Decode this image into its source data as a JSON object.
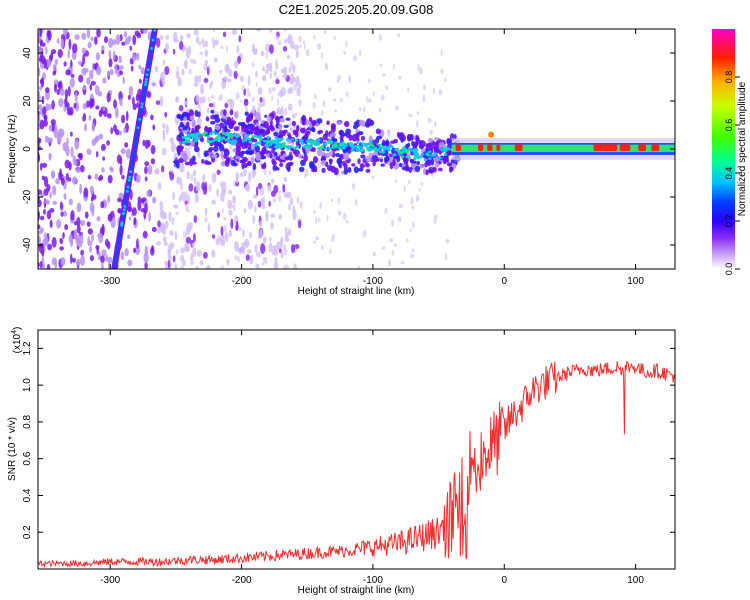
{
  "figure_title": "C2E1.2025.205.20.09.G08",
  "chart_data": [
    {
      "type": "heatmap",
      "title": "C2E1.2025.205.20.09.G08",
      "xlabel": "Height of straight line (km)",
      "ylabel": "Frequency (Hz)",
      "xlim": [
        -355,
        130
      ],
      "ylim": [
        -50,
        50
      ],
      "x_ticks": [
        -300,
        -200,
        -100,
        0,
        100
      ],
      "y_ticks": [
        -40,
        -20,
        0,
        20,
        40
      ],
      "colorbar": {
        "label": "Normalized spectral amplitude",
        "range": [
          0,
          1
        ],
        "ticks": [
          0.0,
          0.2,
          0.4,
          0.6,
          0.8
        ],
        "colors": [
          "#ffffff",
          "#b87cf0",
          "#6a00ff",
          "#0000ff",
          "#00c8ff",
          "#00ff80",
          "#66ff00",
          "#ffff00",
          "#ff8000",
          "#ff0000",
          "#ff00c0"
        ]
      },
      "features": {
        "drifting_line": {
          "x_start": -297,
          "freq_start": -50,
          "x_end": -266,
          "freq_end": 50
        },
        "main_line": {
          "x": [
            -250,
            -220,
            -200,
            -180,
            -160,
            -140,
            -120,
            -100,
            -90,
            -80,
            -70,
            -60,
            -50,
            -45,
            -40,
            -30,
            -20,
            -10,
            0,
            20,
            40,
            60,
            80,
            100,
            130
          ],
          "freq": [
            4,
            5,
            4,
            3,
            2,
            2,
            1,
            1,
            0,
            -1,
            -2,
            -3,
            -2,
            -1,
            -2,
            -1,
            0,
            1,
            1,
            1,
            1,
            1,
            1,
            1,
            1
          ]
        }
      }
    },
    {
      "type": "line",
      "xlabel": "Height of straight line (km)",
      "ylabel": "SNR (10 * v/v)",
      "y_multiplier": "(x10⁴)",
      "xlim": [
        -355,
        130
      ],
      "ylim": [
        0,
        1.3
      ],
      "x_ticks": [
        -300,
        -200,
        -100,
        0,
        100
      ],
      "y_ticks": [
        0.2,
        0.4,
        0.6,
        0.8,
        1.0,
        1.2
      ],
      "color": "#ee3030",
      "x": [
        -355,
        -340,
        -320,
        -300,
        -280,
        -260,
        -240,
        -220,
        -200,
        -180,
        -160,
        -140,
        -120,
        -110,
        -100,
        -90,
        -80,
        -70,
        -60,
        -50,
        -45,
        -40,
        -35,
        -30,
        -27,
        -25,
        -22,
        -20,
        -15,
        -10,
        -5,
        0,
        5,
        10,
        15,
        20,
        25,
        30,
        40,
        50,
        60,
        70,
        80,
        85,
        88,
        90,
        92,
        95,
        100,
        105,
        110,
        115,
        120,
        125,
        130
      ],
      "y": [
        0.03,
        0.03,
        0.03,
        0.04,
        0.04,
        0.04,
        0.05,
        0.05,
        0.06,
        0.07,
        0.08,
        0.09,
        0.1,
        0.11,
        0.12,
        0.13,
        0.14,
        0.16,
        0.18,
        0.2,
        0.26,
        0.3,
        0.36,
        0.45,
        0.55,
        0.6,
        0.55,
        0.6,
        0.63,
        0.66,
        0.7,
        0.75,
        0.82,
        0.86,
        0.9,
        0.96,
        0.99,
        1.01,
        1.04,
        1.07,
        1.09,
        1.08,
        1.09,
        1.1,
        1.1,
        1.08,
        1.1,
        1.1,
        1.1,
        1.08,
        1.07,
        1.08,
        1.07,
        1.06,
        1.05
      ]
    }
  ]
}
